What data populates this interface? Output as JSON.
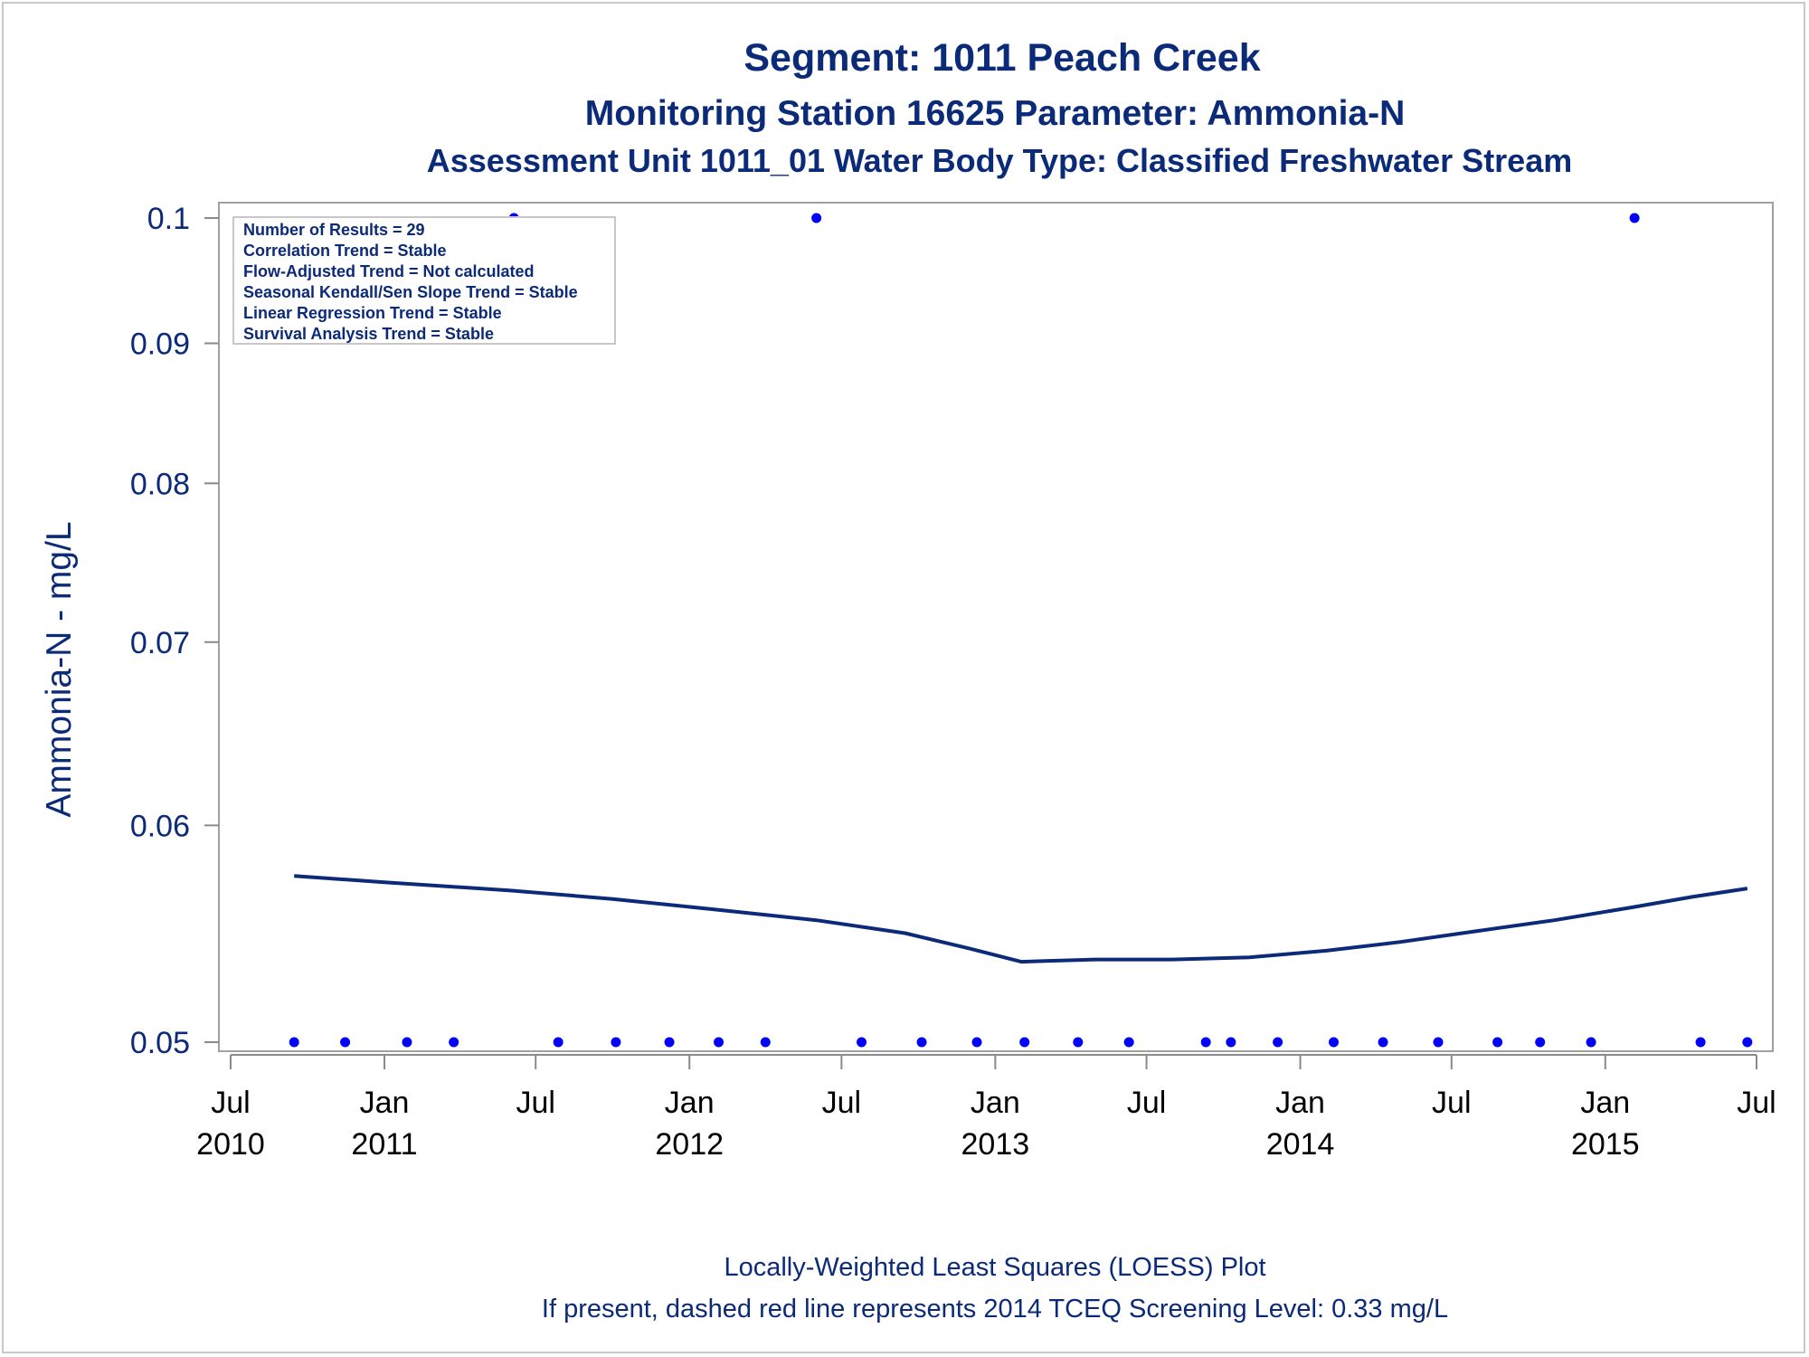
{
  "chart_data": {
    "type": "scatter",
    "title": "Segment: 1011  Peach Creek",
    "subtitle1": "Monitoring Station 16625 Parameter: Ammonia-N",
    "subtitle2": "Assessment Unit 1011_01   Water Body Type: Classified Freshwater Stream",
    "ylabel": "Ammonia-N - mg/L",
    "xlabel": "",
    "ylim": [
      0.05,
      0.1
    ],
    "y_scale": "log",
    "y_ticks": [
      0.05,
      0.06,
      0.07,
      0.08,
      0.09,
      0.1
    ],
    "y_tick_labels": [
      "0.05",
      "0.06",
      "0.07",
      "0.08",
      "0.09",
      "0.1"
    ],
    "xlim": [
      "2010-07-01",
      "2015-07-01"
    ],
    "x_ticks": [
      "2010-07-01",
      "2011-01-01",
      "2011-07-01",
      "2012-01-01",
      "2012-07-01",
      "2013-01-01",
      "2013-07-01",
      "2014-01-01",
      "2014-07-01",
      "2015-01-01",
      "2015-07-01"
    ],
    "x_tick_labels": [
      {
        "month": "Jul",
        "year": "2010"
      },
      {
        "month": "Jan",
        "year": "2011"
      },
      {
        "month": "Jul",
        "year": ""
      },
      {
        "month": "Jan",
        "year": "2012"
      },
      {
        "month": "Jul",
        "year": ""
      },
      {
        "month": "Jan",
        "year": "2013"
      },
      {
        "month": "Jul",
        "year": ""
      },
      {
        "month": "Jan",
        "year": "2014"
      },
      {
        "month": "Jul",
        "year": ""
      },
      {
        "month": "Jan",
        "year": "2015"
      },
      {
        "month": "Jul",
        "year": ""
      }
    ],
    "points": {
      "color": "#0000ff",
      "x": [
        "2010-09-15",
        "2010-11-15",
        "2011-01-28",
        "2011-03-25",
        "2011-06-05",
        "2011-07-28",
        "2011-10-05",
        "2011-12-08",
        "2012-02-05",
        "2012-04-01",
        "2012-06-01",
        "2012-07-25",
        "2012-10-05",
        "2012-12-10",
        "2013-02-05",
        "2013-04-10",
        "2013-06-10",
        "2013-09-10",
        "2013-10-10",
        "2013-12-05",
        "2014-02-10",
        "2014-04-10",
        "2014-06-15",
        "2014-08-25",
        "2014-10-15",
        "2014-12-15",
        "2015-02-05",
        "2015-04-25",
        "2015-06-20"
      ],
      "y": [
        0.05,
        0.05,
        0.05,
        0.05,
        0.1,
        0.05,
        0.05,
        0.05,
        0.05,
        0.05,
        0.1,
        0.05,
        0.05,
        0.05,
        0.05,
        0.05,
        0.05,
        0.05,
        0.05,
        0.05,
        0.05,
        0.05,
        0.05,
        0.05,
        0.05,
        0.05,
        0.1,
        0.05,
        0.05
      ]
    },
    "loess": {
      "color": "#0b2a78",
      "x": [
        "2010-09-15",
        "2011-01-01",
        "2011-06-01",
        "2011-10-01",
        "2012-02-01",
        "2012-06-01",
        "2012-09-15",
        "2012-12-01",
        "2013-02-01",
        "2013-05-01",
        "2013-08-01",
        "2013-11-01",
        "2014-02-01",
        "2014-05-01",
        "2014-08-01",
        "2014-11-01",
        "2015-02-01",
        "2015-04-15",
        "2015-06-20"
      ],
      "y": [
        0.0575,
        0.0572,
        0.0568,
        0.0564,
        0.0559,
        0.0554,
        0.0548,
        0.0541,
        0.0535,
        0.0536,
        0.0536,
        0.0537,
        0.054,
        0.0544,
        0.0549,
        0.0554,
        0.056,
        0.0565,
        0.0569
      ]
    },
    "legend": {
      "placement": "top-left",
      "lines": [
        "Number of Results = 29",
        "Correlation Trend = Stable",
        "Flow-Adjusted Trend = Not calculated",
        "Seasonal Kendall/Sen Slope Trend = Stable",
        "Linear Regression Trend = Stable",
        "Survival Analysis Trend = Stable"
      ]
    },
    "footnotes": [
      "Locally-Weighted Least Squares (LOESS) Plot",
      "If present, dashed red line represents 2014 TCEQ Screening Level: 0.33 mg/L"
    ]
  }
}
